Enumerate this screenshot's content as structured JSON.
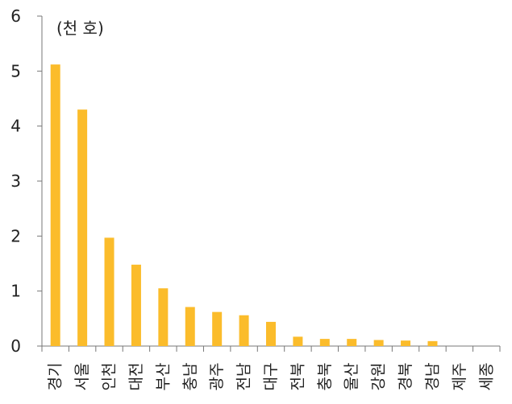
{
  "chart_data": {
    "type": "bar",
    "unit_label": "(천 호)",
    "categories": [
      "경기",
      "서울",
      "인천",
      "대전",
      "부산",
      "충남",
      "광주",
      "전남",
      "대구",
      "전북",
      "충북",
      "울산",
      "강원",
      "경북",
      "경남",
      "제주",
      "세종"
    ],
    "values": [
      5.12,
      4.3,
      1.97,
      1.48,
      1.05,
      0.71,
      0.62,
      0.56,
      0.44,
      0.17,
      0.13,
      0.13,
      0.11,
      0.1,
      0.09,
      0.0,
      0.0
    ],
    "ylim": [
      0,
      6
    ],
    "yticks": [
      "0",
      "1",
      "2",
      "3",
      "4",
      "5",
      "6"
    ],
    "bar_color": "#FBBC2B",
    "grid": false,
    "legend": "none"
  }
}
